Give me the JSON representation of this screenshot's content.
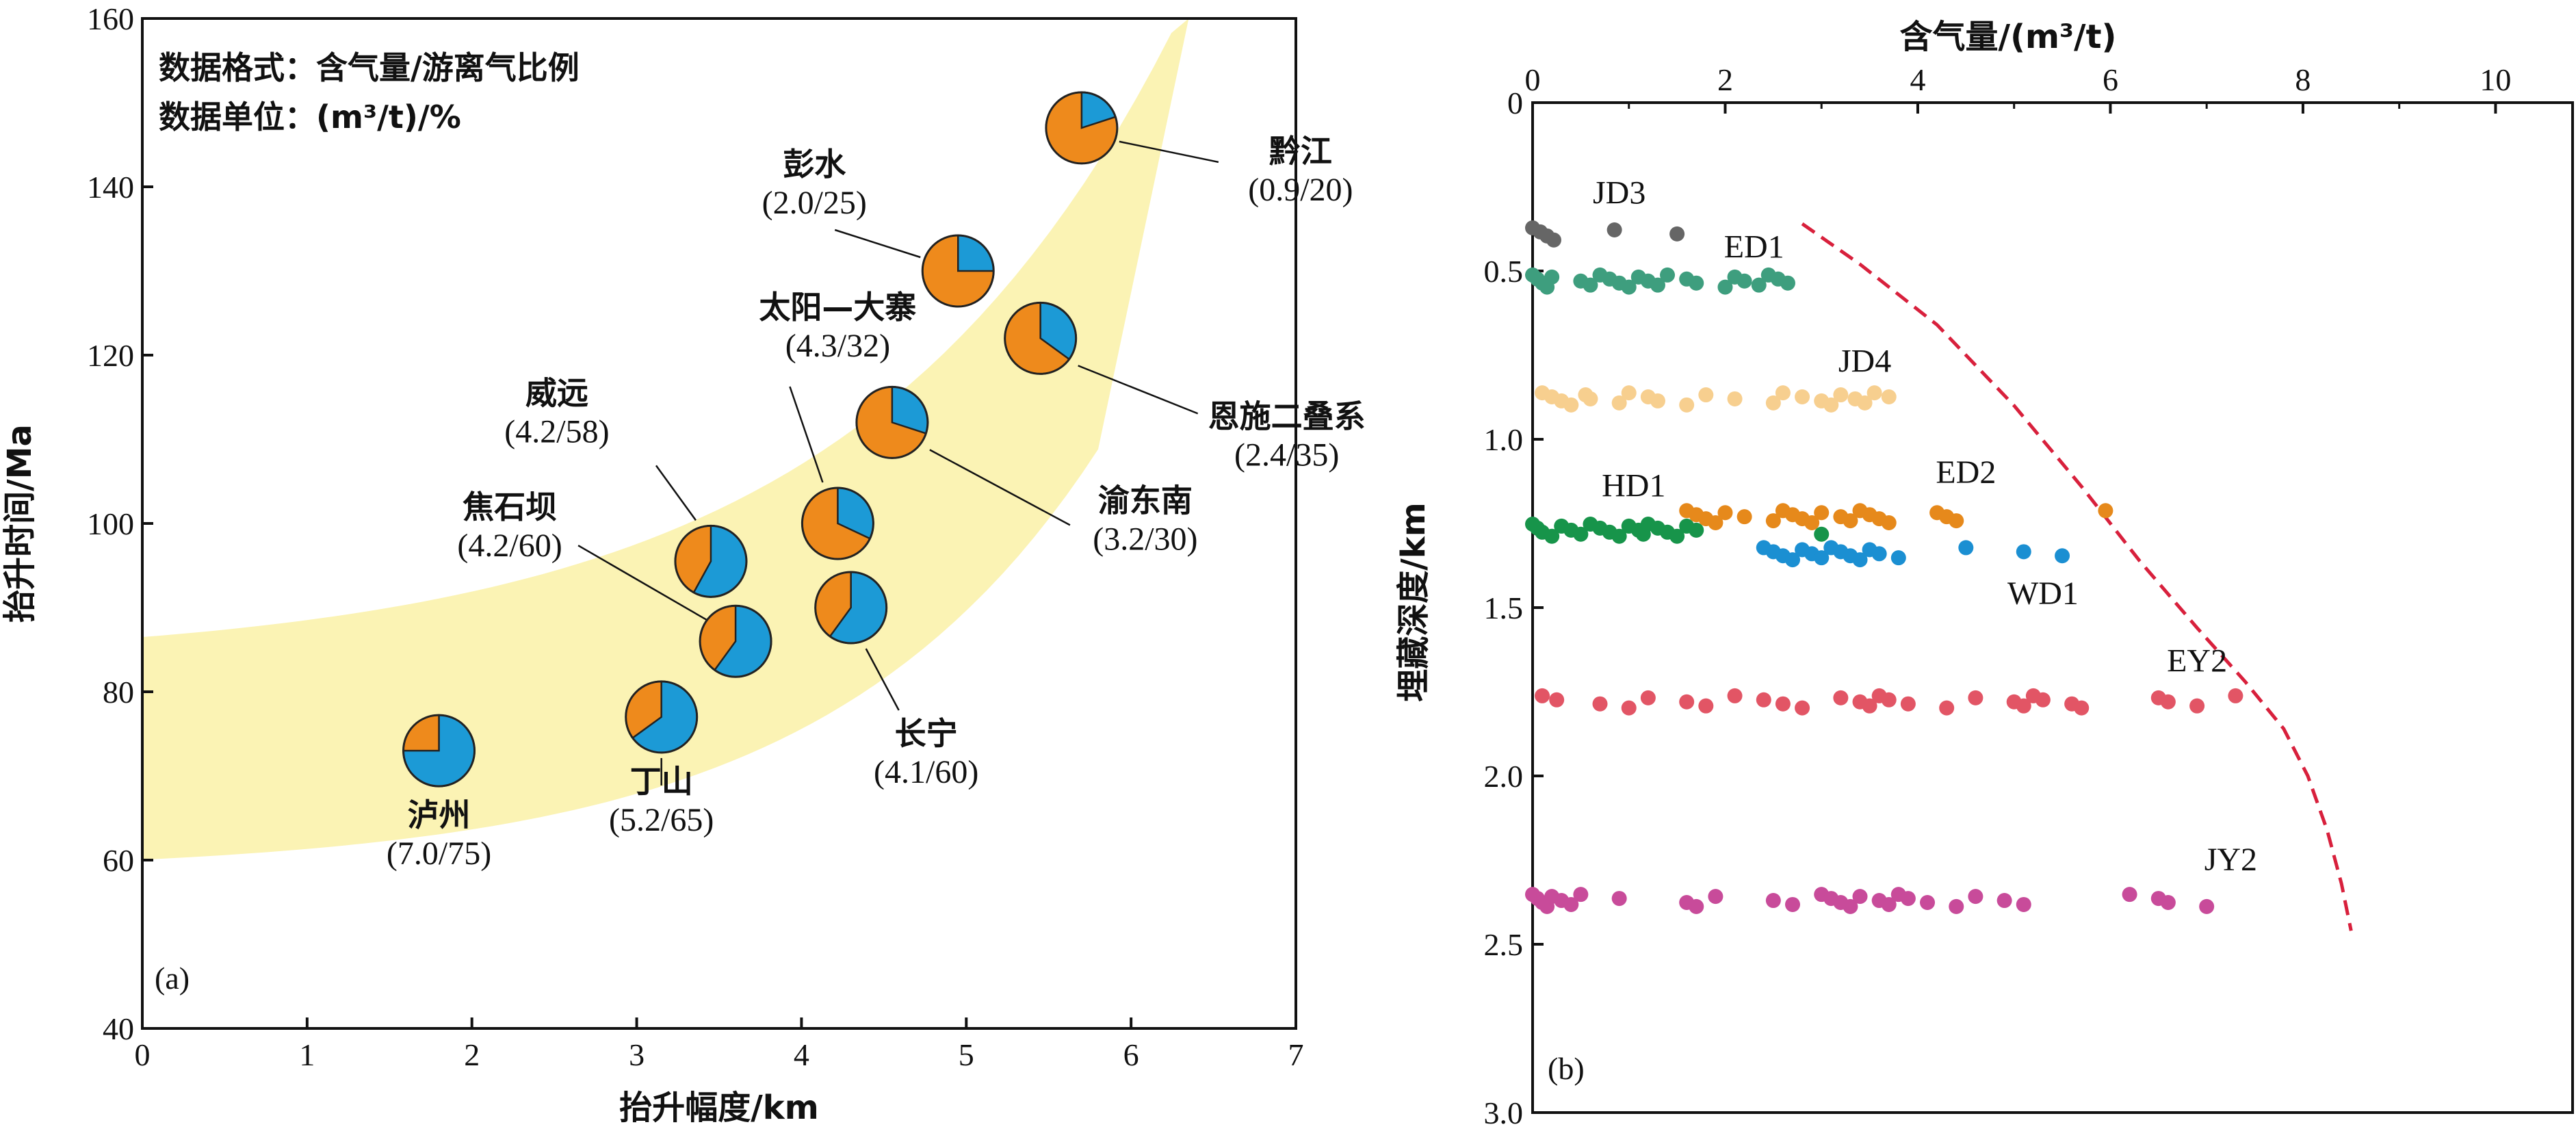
{
  "chart_data": [
    {
      "type": "scatter",
      "panel": "(a)",
      "xlabel": "抬升幅度/km",
      "ylabel": "抬升时间/Ma",
      "xlim": [
        0,
        7
      ],
      "ylim": [
        40,
        160
      ],
      "xticks": [
        0,
        1,
        2,
        3,
        4,
        5,
        6,
        7
      ],
      "yticks": [
        40,
        60,
        80,
        100,
        120,
        140,
        160
      ],
      "notes": [
        "数据格式：含气量/游离气比例",
        "数据单位：(m³/t)/%"
      ],
      "legend_colors": {
        "gas_content": "#ee8a1c",
        "free_gas": "#1c9ad6",
        "band": "#fbf3b4"
      },
      "points": [
        {
          "name": "泸州",
          "label": "(7.0/75)",
          "x": 1.8,
          "y": 73,
          "free_pct": 75
        },
        {
          "name": "丁山",
          "label": "(5.2/65)",
          "x": 3.15,
          "y": 77,
          "free_pct": 65
        },
        {
          "name": "焦石坝",
          "label": "(4.2/60)",
          "x": 3.6,
          "y": 86,
          "free_pct": 60
        },
        {
          "name": "威远",
          "label": "(4.2/58)",
          "x": 3.45,
          "y": 95.5,
          "free_pct": 58
        },
        {
          "name": "长宁",
          "label": "(4.1/60)",
          "x": 4.3,
          "y": 90,
          "free_pct": 60
        },
        {
          "name": "太阳—大寨",
          "label": "(4.3/32)",
          "x": 4.22,
          "y": 100,
          "free_pct": 32
        },
        {
          "name": "渝东南",
          "label": "(3.2/30)",
          "x": 4.55,
          "y": 112,
          "free_pct": 30
        },
        {
          "name": "恩施二叠系",
          "label": "(2.4/35)",
          "x": 5.45,
          "y": 122,
          "free_pct": 35
        },
        {
          "name": "彭水",
          "label": "(2.0/25)",
          "x": 4.95,
          "y": 130,
          "free_pct": 25
        },
        {
          "name": "黔江",
          "label": "(0.9/20)",
          "x": 5.7,
          "y": 147,
          "free_pct": 20
        }
      ]
    },
    {
      "type": "scatter",
      "panel": "(b)",
      "xlabel": "含气量/(m³/t)",
      "ylabel": "埋藏深度/km",
      "xlim": [
        0,
        10.8
      ],
      "ylim": [
        3.0,
        0
      ],
      "xticks": [
        0,
        2,
        4,
        6,
        8,
        10
      ],
      "yticks": [
        0,
        0.5,
        1.0,
        1.5,
        2.0,
        2.5,
        3.0
      ],
      "ytick_labels": [
        "0",
        "0.5",
        "1.0",
        "1.5",
        "2.0",
        "2.5",
        "3.0"
      ],
      "envelope_color": "#d8203c",
      "envelope": [
        [
          2.8,
          0.36
        ],
        [
          3.4,
          0.48
        ],
        [
          4.2,
          0.66
        ],
        [
          5.0,
          0.9
        ],
        [
          5.7,
          1.14
        ],
        [
          6.3,
          1.36
        ],
        [
          6.9,
          1.56
        ],
        [
          7.4,
          1.72
        ],
        [
          7.8,
          1.86
        ],
        [
          8.05,
          2.0
        ],
        [
          8.25,
          2.16
        ],
        [
          8.4,
          2.32
        ],
        [
          8.5,
          2.46
        ]
      ],
      "series": [
        {
          "name": "JD3",
          "color": "#666666",
          "y": 0.39,
          "x": [
            0.0,
            0.08,
            0.15,
            0.22,
            0.85,
            1.5
          ]
        },
        {
          "name": "ED1",
          "color": "#3e9e7e",
          "y": 0.53,
          "x": [
            0.0,
            0.05,
            0.1,
            0.15,
            0.2,
            0.5,
            0.6,
            0.7,
            0.8,
            0.9,
            1.0,
            1.1,
            1.2,
            1.3,
            1.4,
            1.6,
            1.7,
            2.0,
            2.1,
            2.2,
            2.35,
            2.45,
            2.55,
            2.65
          ]
        },
        {
          "name": "JD4",
          "color": "#f7cf8f",
          "y": 0.88,
          "x": [
            0.1,
            0.2,
            0.3,
            0.4,
            0.55,
            0.6,
            0.9,
            1.0,
            1.2,
            1.3,
            1.6,
            1.8,
            2.1,
            2.5,
            2.6,
            2.8,
            3.0,
            3.1,
            3.2,
            3.35,
            3.45,
            3.55,
            3.7
          ]
        },
        {
          "name": "HD1",
          "color": "#17944a",
          "y": 1.27,
          "x": [
            0.0,
            0.05,
            0.1,
            0.2,
            0.3,
            0.4,
            0.5,
            0.6,
            0.7,
            0.8,
            0.9,
            1.0,
            1.1,
            1.15,
            1.2,
            1.3,
            1.4,
            1.5,
            1.6,
            1.7,
            3.0
          ]
        },
        {
          "name": "ED2",
          "color": "#e6891b",
          "y": 1.23,
          "x": [
            1.6,
            1.7,
            1.8,
            1.9,
            2.0,
            2.2,
            2.5,
            2.6,
            2.7,
            2.8,
            2.9,
            3.0,
            3.2,
            3.3,
            3.4,
            3.5,
            3.6,
            3.7,
            4.2,
            4.3,
            4.4,
            5.95
          ]
        },
        {
          "name": "WD1",
          "color": "#1b8fd2",
          "y": 1.34,
          "x": [
            2.4,
            2.5,
            2.6,
            2.7,
            2.8,
            2.9,
            3.0,
            3.1,
            3.2,
            3.3,
            3.4,
            3.5,
            3.6,
            3.8,
            4.5,
            5.1,
            5.5
          ]
        },
        {
          "name": "EY2",
          "color": "#e25565",
          "y": 1.78,
          "x": [
            0.1,
            0.25,
            0.7,
            1.0,
            1.2,
            1.6,
            1.8,
            2.1,
            2.4,
            2.6,
            2.8,
            3.2,
            3.4,
            3.5,
            3.6,
            3.7,
            3.9,
            4.3,
            4.6,
            5.0,
            5.1,
            5.2,
            5.3,
            5.6,
            5.7,
            6.5,
            6.6,
            6.9,
            7.3
          ]
        },
        {
          "name": "JY2",
          "color": "#c84b9a",
          "y": 2.37,
          "x": [
            0.0,
            0.05,
            0.1,
            0.15,
            0.2,
            0.3,
            0.4,
            0.5,
            0.9,
            1.6,
            1.7,
            1.9,
            2.5,
            2.7,
            3.0,
            3.1,
            3.2,
            3.3,
            3.4,
            3.6,
            3.7,
            3.8,
            3.9,
            4.1,
            4.4,
            4.6,
            4.9,
            5.1,
            6.2,
            6.5,
            6.6,
            7.0
          ]
        }
      ]
    }
  ]
}
